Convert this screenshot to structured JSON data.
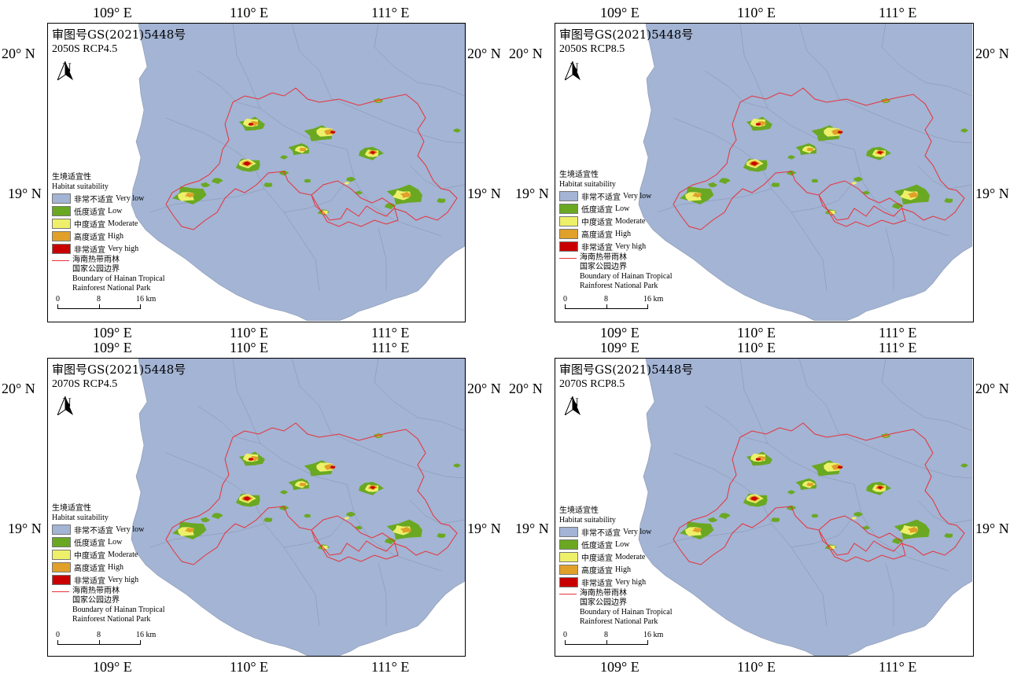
{
  "approval_number": "审图号GS(2021)5448号",
  "axes": {
    "lon_labels": [
      "109° E",
      "110° E",
      "111° E"
    ],
    "lat_labels": [
      "20° N",
      "19° N"
    ]
  },
  "north_arrow": {
    "letter": "N",
    "icon": "north-arrow-icon"
  },
  "legend": {
    "title_cn": "生境适宜性",
    "title_en": "Habitat suitability",
    "classes": [
      {
        "cn": "非常不适宜",
        "en": "Very low",
        "color": "#a3b4d4"
      },
      {
        "cn": "低度适宜",
        "en": "Low",
        "color": "#6aa822"
      },
      {
        "cn": "中度适宜",
        "en": "Moderate",
        "color": "#eef06a"
      },
      {
        "cn": "高度适宜",
        "en": "High",
        "color": "#e0a02a"
      },
      {
        "cn": "非常适宜",
        "en": "Very high",
        "color": "#c80000"
      }
    ],
    "boundary_cn_1": "海南热带雨林",
    "boundary_cn_2": "国家公园边界",
    "boundary_en_1": "Boundary of Hainan Tropical",
    "boundary_en_2": "Rainforest National Park",
    "boundary_color": "#e8323a"
  },
  "scale_bar": {
    "labels": [
      "0",
      "8",
      "16 km"
    ]
  },
  "panels": [
    {
      "id": "2050-rcp45",
      "scenario": "2050S RCP4.5"
    },
    {
      "id": "2050-rcp85",
      "scenario": "2050S RCP8.5"
    },
    {
      "id": "2070-rcp45",
      "scenario": "2070S RCP4.5"
    },
    {
      "id": "2070-rcp85",
      "scenario": "2070S RCP8.5"
    }
  ],
  "colors": {
    "land": "#a3b4d4",
    "sea": "#ffffff",
    "county_border": "#7f8aa3"
  }
}
